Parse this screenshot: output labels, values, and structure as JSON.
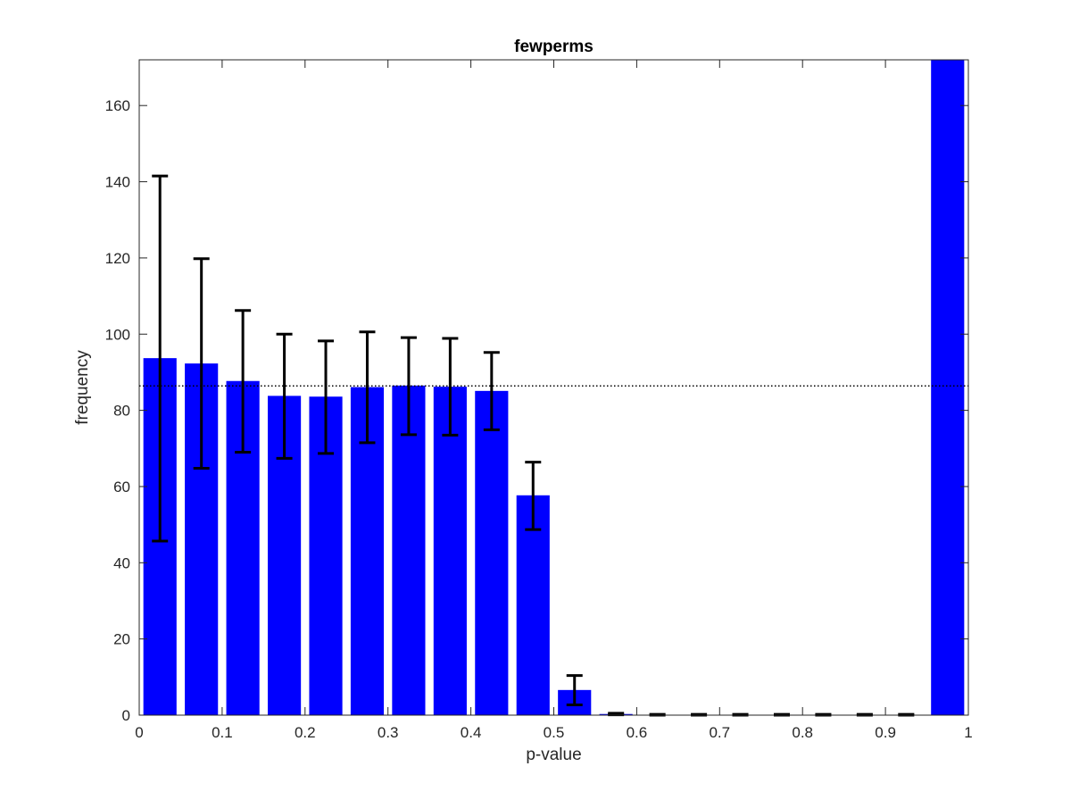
{
  "chart_data": {
    "type": "bar",
    "title": "fewperms",
    "xlabel": "p-value",
    "ylabel": "frequency",
    "xlim": [
      0,
      1
    ],
    "ylim": [
      0,
      172
    ],
    "xticks": [
      0,
      0.1,
      0.2,
      0.3,
      0.4,
      0.5,
      0.6,
      0.7,
      0.8,
      0.9,
      1
    ],
    "xtick_labels": [
      "0",
      "0.1",
      "0.2",
      "0.3",
      "0.4",
      "0.5",
      "0.6",
      "0.7",
      "0.8",
      "0.9",
      "1"
    ],
    "yticks": [
      0,
      20,
      40,
      60,
      80,
      100,
      120,
      140,
      160
    ],
    "ytick_labels": [
      "0",
      "20",
      "40",
      "60",
      "80",
      "100",
      "120",
      "140",
      "160"
    ],
    "grid": false,
    "bin_width": 0.05,
    "bar_color": "#0000ff",
    "errorbar_color": "#000000",
    "x": [
      0.025,
      0.075,
      0.125,
      0.175,
      0.225,
      0.275,
      0.325,
      0.375,
      0.425,
      0.475,
      0.525,
      0.575,
      0.625,
      0.675,
      0.725,
      0.775,
      0.825,
      0.875,
      0.925,
      0.975
    ],
    "values": [
      93.7,
      92.3,
      87.7,
      83.8,
      83.6,
      86.1,
      86.5,
      86.2,
      85.1,
      57.7,
      6.6,
      0.3,
      0.1,
      0.1,
      0.1,
      0.1,
      0.1,
      0.1,
      0.1,
      172
    ],
    "errorbars": [
      {
        "x": 0.025,
        "low": 45.7,
        "high": 141.5
      },
      {
        "x": 0.075,
        "low": 64.8,
        "high": 119.8
      },
      {
        "x": 0.125,
        "low": 69.0,
        "high": 106.2
      },
      {
        "x": 0.175,
        "low": 67.4,
        "high": 100.0
      },
      {
        "x": 0.225,
        "low": 68.7,
        "high": 98.2
      },
      {
        "x": 0.275,
        "low": 71.5,
        "high": 100.6
      },
      {
        "x": 0.325,
        "low": 73.6,
        "high": 99.1
      },
      {
        "x": 0.375,
        "low": 73.5,
        "high": 98.9
      },
      {
        "x": 0.425,
        "low": 74.9,
        "high": 95.2
      },
      {
        "x": 0.475,
        "low": 48.7,
        "high": 66.4
      },
      {
        "x": 0.525,
        "low": 2.7,
        "high": 10.4
      },
      {
        "x": 0.575,
        "low": 0.1,
        "high": 0.5
      },
      {
        "x": 0.625,
        "low": 0.0,
        "high": 0.2
      },
      {
        "x": 0.675,
        "low": 0.0,
        "high": 0.2
      },
      {
        "x": 0.725,
        "low": 0.0,
        "high": 0.2
      },
      {
        "x": 0.775,
        "low": 0.0,
        "high": 0.2
      },
      {
        "x": 0.825,
        "low": 0.0,
        "high": 0.2
      },
      {
        "x": 0.875,
        "low": 0.0,
        "high": 0.2
      },
      {
        "x": 0.925,
        "low": 0.0,
        "high": 0.2
      }
    ],
    "reference_line": {
      "y": 86.4,
      "style": "dotted",
      "color": "#000000"
    }
  }
}
